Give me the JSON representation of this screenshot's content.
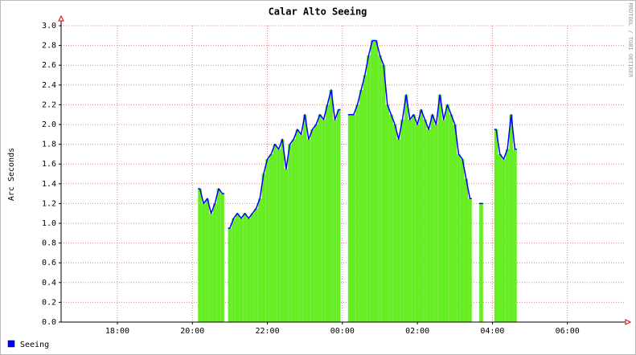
{
  "chart_data": {
    "type": "area",
    "title": "Calar Alto Seeing",
    "y_label": "Arc Seconds",
    "watermark": "RRDTOOL / TOBI OETIKER",
    "x": [
      20.2,
      20.3,
      20.4,
      20.5,
      20.6,
      20.7,
      20.8,
      20.9,
      21.0,
      21.1,
      21.2,
      21.3,
      21.4,
      21.5,
      21.6,
      21.7,
      21.8,
      21.9,
      22.0,
      22.1,
      22.2,
      22.3,
      22.4,
      22.5,
      22.6,
      22.7,
      22.8,
      22.9,
      23.0,
      23.1,
      23.2,
      23.3,
      23.4,
      23.5,
      23.6,
      23.7,
      23.8,
      23.9,
      24.0,
      24.1,
      24.2,
      24.3,
      24.4,
      24.5,
      24.6,
      24.7,
      24.8,
      24.9,
      25.0,
      25.1,
      25.2,
      25.3,
      25.4,
      25.5,
      25.6,
      25.7,
      25.8,
      25.9,
      26.0,
      26.1,
      26.2,
      26.3,
      26.4,
      26.5,
      26.6,
      26.7,
      26.8,
      26.9,
      27.0,
      27.1,
      27.2,
      27.3,
      27.4,
      27.5,
      27.6,
      27.7,
      27.8,
      27.9,
      28.0,
      28.1,
      28.2,
      28.3,
      28.4,
      28.5,
      28.6
    ],
    "series": [
      {
        "name": "Seeing",
        "color": "#66ee22",
        "line_color": "#0000ff",
        "values": [
          1.35,
          1.2,
          1.25,
          1.1,
          1.2,
          1.35,
          1.3,
          null,
          0.95,
          1.05,
          1.1,
          1.05,
          1.1,
          1.05,
          1.1,
          1.15,
          1.25,
          1.5,
          1.65,
          1.7,
          1.8,
          1.75,
          1.85,
          1.55,
          1.8,
          1.85,
          1.95,
          1.9,
          2.1,
          1.85,
          1.95,
          2.0,
          2.1,
          2.05,
          2.2,
          2.35,
          2.05,
          2.15,
          null,
          null,
          2.1,
          2.1,
          2.2,
          2.35,
          2.5,
          2.7,
          2.85,
          2.85,
          2.7,
          2.6,
          2.2,
          2.1,
          2.0,
          1.85,
          2.05,
          2.3,
          2.05,
          2.1,
          2.0,
          2.15,
          2.05,
          1.95,
          2.1,
          2.0,
          2.3,
          2.05,
          2.2,
          2.1,
          2.0,
          1.7,
          1.65,
          1.45,
          1.25,
          null,
          null,
          1.2,
          null,
          null,
          null,
          1.95,
          1.7,
          1.65,
          1.75,
          2.1,
          1.75
        ]
      }
    ],
    "xlim": [
      16.5,
      31.55
    ],
    "xticks": [
      {
        "value": 18,
        "label": "18:00"
      },
      {
        "value": 20,
        "label": "20:00"
      },
      {
        "value": 22,
        "label": "22:00"
      },
      {
        "value": 24,
        "label": "00:00"
      },
      {
        "value": 26,
        "label": "02:00"
      },
      {
        "value": 28,
        "label": "04:00"
      },
      {
        "value": 30,
        "label": "06:00"
      }
    ],
    "ylim": [
      0,
      3
    ],
    "yticks": [
      {
        "value": 0,
        "label": "0.0"
      },
      {
        "value": 0.2,
        "label": "0.2"
      },
      {
        "value": 0.4,
        "label": "0.4"
      },
      {
        "value": 0.6,
        "label": "0.6"
      },
      {
        "value": 0.8,
        "label": "0.8"
      },
      {
        "value": 1,
        "label": "1.0"
      },
      {
        "value": 1.2,
        "label": "1.2"
      },
      {
        "value": 1.4,
        "label": "1.4"
      },
      {
        "value": 1.6,
        "label": "1.6"
      },
      {
        "value": 1.8,
        "label": "1.8"
      },
      {
        "value": 2,
        "label": "2.0"
      },
      {
        "value": 2.2,
        "label": "2.2"
      },
      {
        "value": 2.4,
        "label": "2.4"
      },
      {
        "value": 2.6,
        "label": "2.6"
      },
      {
        "value": 2.8,
        "label": "2.8"
      },
      {
        "value": 3,
        "label": "3.0"
      }
    ],
    "grid": true
  }
}
